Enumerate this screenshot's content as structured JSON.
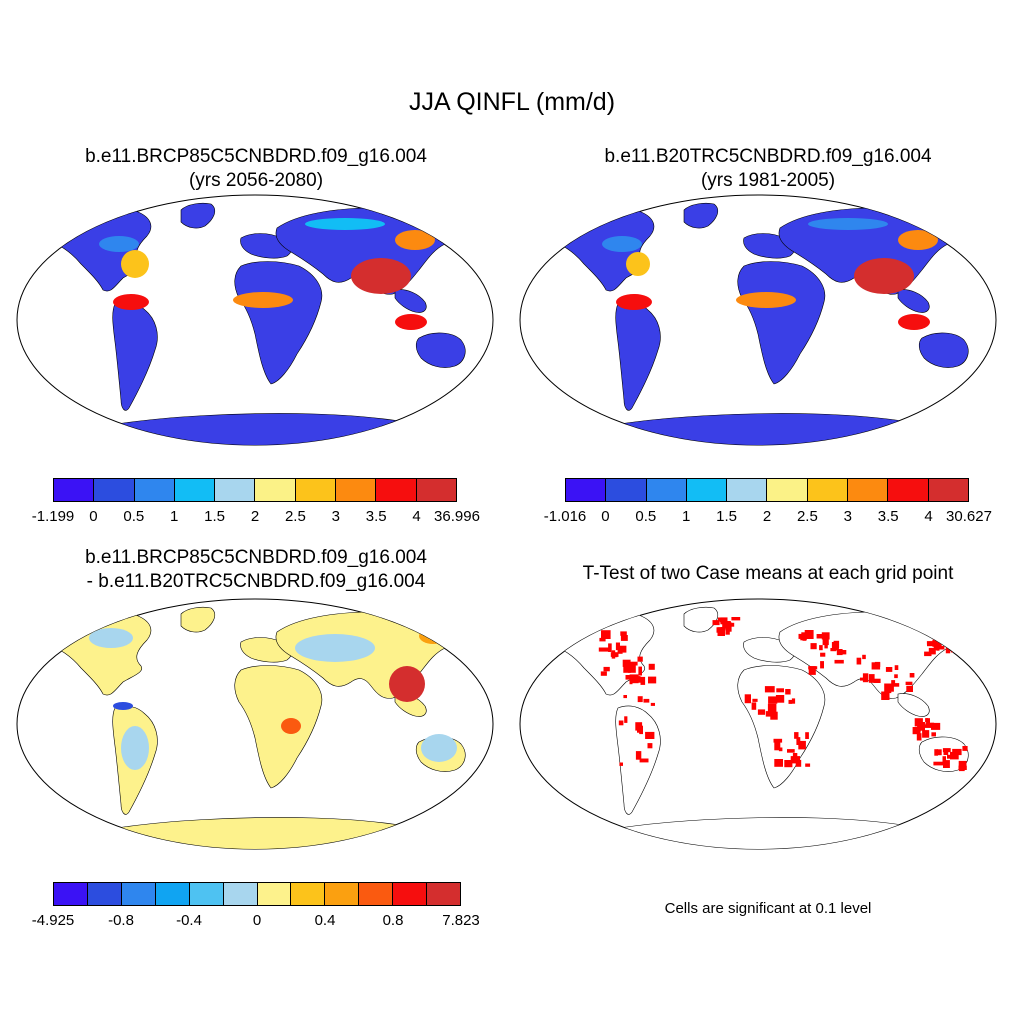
{
  "main_title": "JJA QINFL (mm/d)",
  "panels": [
    {
      "title_line1": "b.e11.BRCP85C5CNBDRD.f09_g16.004",
      "title_line2": "(yrs 2056-2080)",
      "colorbar_labels": [
        "-1.199",
        "0",
        "0.5",
        "1",
        "1.5",
        "2",
        "2.5",
        "3",
        "3.5",
        "4",
        "36.996"
      ]
    },
    {
      "title_line1": "b.e11.B20TRC5CNBDRD.f09_g16.004",
      "title_line2": "(yrs 1981-2005)",
      "colorbar_labels": [
        "-1.016",
        "0",
        "0.5",
        "1",
        "1.5",
        "2",
        "2.5",
        "3",
        "3.5",
        "4",
        "30.627"
      ]
    },
    {
      "title_line1": "b.e11.BRCP85C5CNBDRD.f09_g16.004",
      "title_line2": "- b.e11.B20TRC5CNBDRD.f09_g16.004",
      "colorbar_labels": [
        "-4.925",
        "-0.8",
        "-0.4",
        "0",
        "0.4",
        "0.8",
        "7.823"
      ]
    },
    {
      "title_line1": "T-Test of two Case means at each grid point",
      "note": "Cells are significant at 0.1 level"
    }
  ],
  "colors": {
    "abs_scale": [
      "#3b12f5",
      "#2c4ddf",
      "#2f86ee",
      "#12bdf5",
      "#a8d6ee",
      "#fbf287",
      "#fcc31b",
      "#fc8a10",
      "#f60e0e",
      "#d42e2e"
    ],
    "diff_scale": [
      "#3b12f5",
      "#2c4ddf",
      "#2f86ee",
      "#10a4f2",
      "#4ec2f2",
      "#a8d6ee",
      "#fdf28c",
      "#fcc31b",
      "#fba010",
      "#fa5a10",
      "#f60e0e",
      "#d42e2e"
    ],
    "significant": "#ff0000"
  }
}
